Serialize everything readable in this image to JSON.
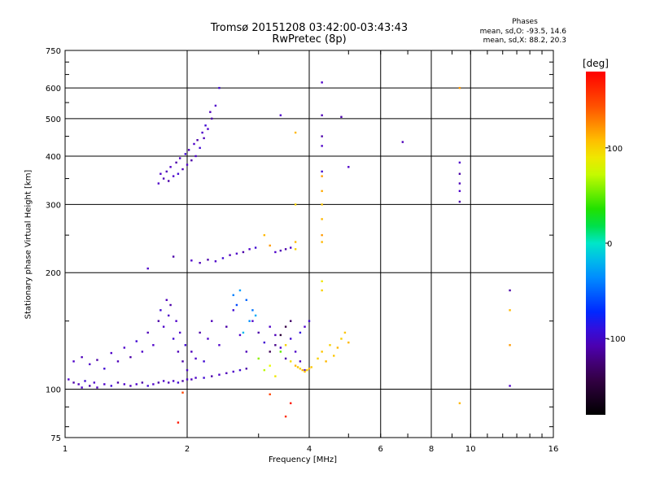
{
  "header": {
    "title_line1": "Tromsø 20151208 03:42:00-03:43:43",
    "title_line2": "RwPretec (8p)"
  },
  "phase_box": {
    "heading": "Phases",
    "line1": "mean, sd,O: -93.5, 14.6",
    "line2": "mean, sd,X:  88.2, 20.3"
  },
  "chart_data": {
    "type": "scatter",
    "title": "Tromsø 20151208 03:42:00-03:43:43",
    "subtitle": "RwPretec (8p)",
    "xlabel": "Frequency [MHz]",
    "ylabel": "Stationary phase Virtual Height [km]",
    "x_scale": "log",
    "y_scale": "log",
    "xlim": [
      1,
      16
    ],
    "ylim": [
      75,
      750
    ],
    "x_ticks": [
      1,
      2,
      4,
      6,
      8,
      10,
      16
    ],
    "x_tick_labels": [
      "1",
      "2",
      "4",
      "6",
      "8",
      "10",
      "16"
    ],
    "y_ticks": [
      75,
      100,
      200,
      300,
      400,
      500,
      600,
      750
    ],
    "y_tick_labels": [
      "75",
      "100",
      "200",
      "300",
      "400",
      "500",
      "600",
      "750"
    ],
    "grid": true,
    "colorbar": {
      "label": "[deg]",
      "min": -180,
      "max": 180,
      "ticks": [
        100,
        0,
        -100
      ],
      "tick_labels": [
        "100",
        "0",
        "-100"
      ]
    },
    "series": [
      {
        "points": [
          [
            1.02,
            106,
            -100
          ],
          [
            1.05,
            104,
            -110
          ],
          [
            1.08,
            103,
            -105
          ],
          [
            1.1,
            101,
            -100
          ],
          [
            1.12,
            105,
            -95
          ],
          [
            1.15,
            102,
            -110
          ],
          [
            1.18,
            104,
            -100
          ],
          [
            1.2,
            101,
            -105
          ],
          [
            1.25,
            103,
            -100
          ],
          [
            1.3,
            102,
            -95
          ],
          [
            1.35,
            104,
            -110
          ],
          [
            1.4,
            103,
            -100
          ],
          [
            1.45,
            102,
            -105
          ],
          [
            1.5,
            103,
            -100
          ],
          [
            1.55,
            104,
            -110
          ],
          [
            1.6,
            102,
            -95
          ],
          [
            1.65,
            103,
            -100
          ],
          [
            1.7,
            104,
            -110
          ],
          [
            1.75,
            105,
            -100
          ],
          [
            1.8,
            104,
            -105
          ],
          [
            1.85,
            105,
            -100
          ],
          [
            1.9,
            104,
            -95
          ],
          [
            1.95,
            105,
            -110
          ],
          [
            2.0,
            106,
            -100
          ],
          [
            2.05,
            106,
            -105
          ],
          [
            2.1,
            107,
            -100
          ],
          [
            2.2,
            107,
            -95
          ],
          [
            2.3,
            108,
            -110
          ],
          [
            2.4,
            109,
            -100
          ],
          [
            2.5,
            110,
            -105
          ],
          [
            2.6,
            111,
            -100
          ],
          [
            2.7,
            112,
            -95
          ],
          [
            2.8,
            113,
            -110
          ],
          [
            1.05,
            118,
            -100
          ],
          [
            1.1,
            121,
            -105
          ],
          [
            1.15,
            116,
            -100
          ],
          [
            1.2,
            119,
            -110
          ],
          [
            1.25,
            113,
            -95
          ],
          [
            1.3,
            124,
            -100
          ],
          [
            1.35,
            118,
            -105
          ],
          [
            1.4,
            128,
            -100
          ],
          [
            1.45,
            121,
            -110
          ],
          [
            1.5,
            133,
            -95
          ],
          [
            1.55,
            125,
            -100
          ],
          [
            1.6,
            140,
            -105
          ],
          [
            1.65,
            130,
            -100
          ],
          [
            1.7,
            150,
            -110
          ],
          [
            1.72,
            160,
            -95
          ],
          [
            1.75,
            145,
            -100
          ],
          [
            1.78,
            170,
            -105
          ],
          [
            1.8,
            155,
            -100
          ],
          [
            1.82,
            165,
            -110
          ],
          [
            1.85,
            135,
            -95
          ],
          [
            1.88,
            150,
            -100
          ],
          [
            1.9,
            125,
            -105
          ],
          [
            1.92,
            140,
            -100
          ],
          [
            1.95,
            118,
            -110
          ],
          [
            1.98,
            130,
            -95
          ],
          [
            2.0,
            112,
            -100
          ],
          [
            2.05,
            125,
            -105
          ],
          [
            2.1,
            120,
            -100
          ],
          [
            2.15,
            140,
            -110
          ],
          [
            2.2,
            118,
            -95
          ],
          [
            2.25,
            135,
            -100
          ],
          [
            2.3,
            150,
            -105
          ],
          [
            2.4,
            130,
            -100
          ],
          [
            2.5,
            145,
            -110
          ],
          [
            2.6,
            160,
            -95
          ],
          [
            2.7,
            138,
            -100
          ],
          [
            2.8,
            125,
            -105
          ],
          [
            2.9,
            150,
            -100
          ],
          [
            3.0,
            140,
            -110
          ],
          [
            3.1,
            132,
            -95
          ],
          [
            3.2,
            145,
            -100
          ],
          [
            3.3,
            138,
            -105
          ],
          [
            3.4,
            128,
            -100
          ],
          [
            3.5,
            120,
            -110
          ],
          [
            3.6,
            135,
            -95
          ],
          [
            3.7,
            125,
            -100
          ],
          [
            3.8,
            118,
            -105
          ],
          [
            3.9,
            112,
            -100
          ],
          [
            2.6,
            175,
            -40
          ],
          [
            2.7,
            180,
            -30
          ],
          [
            2.8,
            170,
            -50
          ],
          [
            2.9,
            160,
            -45
          ],
          [
            2.75,
            140,
            -20
          ],
          [
            2.85,
            150,
            -35
          ],
          [
            2.65,
            165,
            -60
          ],
          [
            2.95,
            155,
            -25
          ],
          [
            3.0,
            120,
            60
          ],
          [
            3.1,
            112,
            70
          ],
          [
            3.2,
            115,
            80
          ],
          [
            3.3,
            108,
            90
          ],
          [
            3.4,
            125,
            50
          ],
          [
            3.5,
            130,
            100
          ],
          [
            3.6,
            118,
            95
          ],
          [
            3.7,
            115,
            110
          ],
          [
            3.75,
            114,
            105
          ],
          [
            3.8,
            113,
            100
          ],
          [
            3.85,
            112,
            110
          ],
          [
            3.9,
            111,
            105
          ],
          [
            3.95,
            112,
            100
          ],
          [
            4.0,
            113,
            110
          ],
          [
            4.05,
            114,
            105
          ],
          [
            4.2,
            120,
            100
          ],
          [
            4.3,
            125,
            105
          ],
          [
            4.4,
            118,
            110
          ],
          [
            4.5,
            130,
            100
          ],
          [
            4.6,
            122,
            105
          ],
          [
            4.7,
            128,
            110
          ],
          [
            4.8,
            135,
            100
          ],
          [
            4.9,
            140,
            105
          ],
          [
            5.0,
            132,
            110
          ],
          [
            3.8,
            140,
            -90
          ],
          [
            3.9,
            145,
            -100
          ],
          [
            4.0,
            150,
            -95
          ],
          [
            3.6,
            150,
            -130
          ],
          [
            3.5,
            145,
            -140
          ],
          [
            3.4,
            138,
            -150
          ],
          [
            3.3,
            130,
            -120
          ],
          [
            3.2,
            125,
            -135
          ],
          [
            1.7,
            340,
            -100
          ],
          [
            1.75,
            350,
            -105
          ],
          [
            1.8,
            345,
            -110
          ],
          [
            1.85,
            355,
            -100
          ],
          [
            1.9,
            360,
            -95
          ],
          [
            1.95,
            370,
            -105
          ],
          [
            2.0,
            380,
            -100
          ],
          [
            2.05,
            390,
            -110
          ],
          [
            2.1,
            400,
            -100
          ],
          [
            2.15,
            420,
            -95
          ],
          [
            2.2,
            445,
            -105
          ],
          [
            2.25,
            470,
            -100
          ],
          [
            2.3,
            500,
            -110
          ],
          [
            2.35,
            540,
            -100
          ],
          [
            2.4,
            600,
            -95
          ],
          [
            1.72,
            360,
            -100
          ],
          [
            1.78,
            365,
            -105
          ],
          [
            1.82,
            375,
            -100
          ],
          [
            1.88,
            385,
            -110
          ],
          [
            1.92,
            395,
            -100
          ],
          [
            1.98,
            405,
            -95
          ],
          [
            2.02,
            415,
            -105
          ],
          [
            2.08,
            430,
            -100
          ],
          [
            2.12,
            440,
            -110
          ],
          [
            2.18,
            460,
            -100
          ],
          [
            2.22,
            480,
            -95
          ],
          [
            2.28,
            520,
            -105
          ],
          [
            2.05,
            215,
            -100
          ],
          [
            2.15,
            212,
            -105
          ],
          [
            2.25,
            216,
            -110
          ],
          [
            2.35,
            214,
            -100
          ],
          [
            2.45,
            218,
            -95
          ],
          [
            2.55,
            222,
            -105
          ],
          [
            2.65,
            224,
            -100
          ],
          [
            2.75,
            226,
            -110
          ],
          [
            2.85,
            230,
            -100
          ],
          [
            2.95,
            232,
            -95
          ],
          [
            3.3,
            226,
            -100
          ],
          [
            3.4,
            228,
            -105
          ],
          [
            3.5,
            230,
            -110
          ],
          [
            3.6,
            232,
            -100
          ],
          [
            1.85,
            220,
            -110
          ],
          [
            1.6,
            205,
            -100
          ],
          [
            4.3,
            620,
            -100
          ],
          [
            4.3,
            510,
            -105
          ],
          [
            4.3,
            450,
            -110
          ],
          [
            4.3,
            425,
            -100
          ],
          [
            4.3,
            365,
            -95
          ],
          [
            4.3,
            355,
            120
          ],
          [
            4.3,
            325,
            115
          ],
          [
            4.3,
            300,
            105
          ],
          [
            4.3,
            275,
            110
          ],
          [
            4.3,
            250,
            120
          ],
          [
            4.3,
            240,
            110
          ],
          [
            4.3,
            190,
            90
          ],
          [
            4.3,
            180,
            100
          ],
          [
            4.8,
            505,
            -110
          ],
          [
            5.0,
            375,
            -100
          ],
          [
            6.8,
            435,
            -105
          ],
          [
            9.4,
            385,
            -100
          ],
          [
            9.4,
            360,
            -110
          ],
          [
            9.4,
            340,
            -105
          ],
          [
            9.4,
            325,
            -100
          ],
          [
            9.4,
            305,
            -110
          ],
          [
            9.4,
            600,
            120
          ],
          [
            9.4,
            92,
            110
          ],
          [
            3.7,
            460,
            110
          ],
          [
            3.7,
            300,
            100
          ],
          [
            3.7,
            240,
            110
          ],
          [
            3.7,
            230,
            100
          ],
          [
            3.1,
            250,
            110
          ],
          [
            3.2,
            235,
            120
          ],
          [
            3.4,
            510,
            -100
          ],
          [
            12.5,
            180,
            -110
          ],
          [
            12.5,
            160,
            110
          ],
          [
            12.5,
            130,
            120
          ],
          [
            12.5,
            102,
            -100
          ],
          [
            3.5,
            85,
            160
          ],
          [
            3.6,
            92,
            170
          ],
          [
            3.2,
            97,
            150
          ],
          [
            1.9,
            82,
            170
          ],
          [
            1.95,
            98,
            150
          ]
        ]
      }
    ]
  }
}
